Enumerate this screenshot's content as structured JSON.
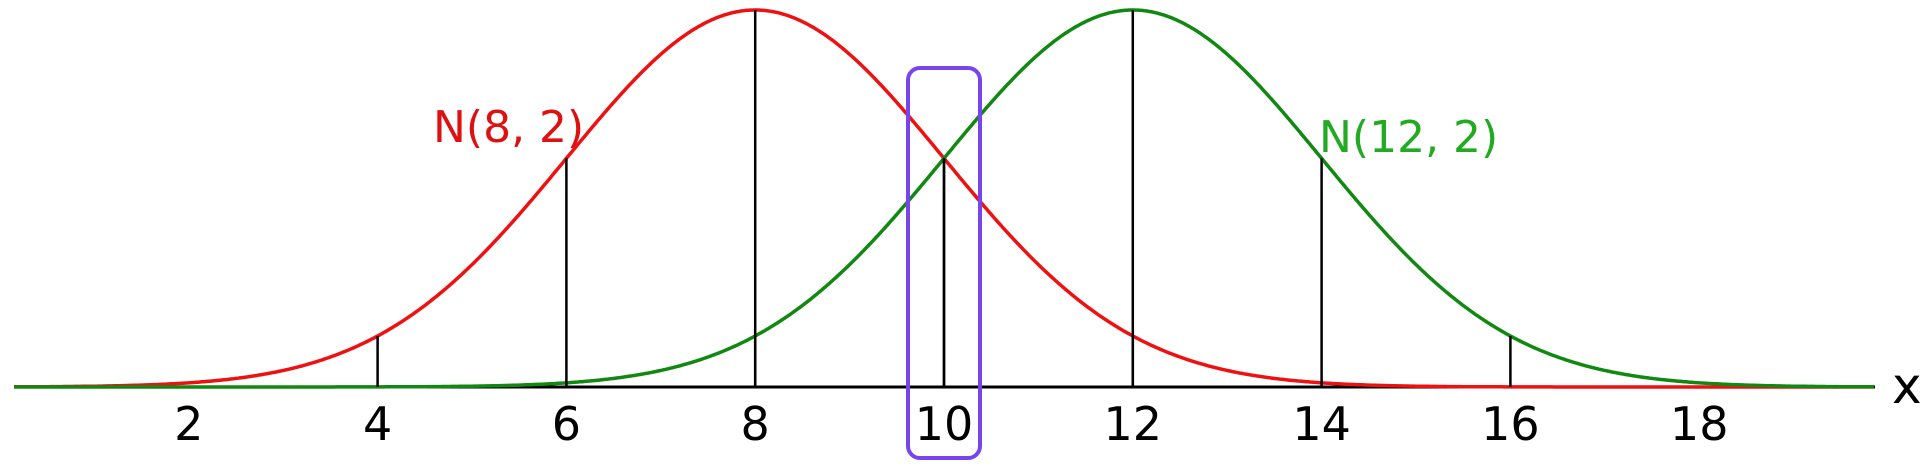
{
  "chart_data": {
    "type": "line",
    "title": "",
    "xlabel": "x",
    "ylabel": "",
    "xlim": [
      0,
      20
    ],
    "ylim": [
      0,
      0.2
    ],
    "grid": false,
    "x_ticks": [
      2,
      4,
      6,
      8,
      10,
      12,
      14,
      16,
      18
    ],
    "series": [
      {
        "name": "N(8, 2)",
        "mean": 8,
        "sd": 2,
        "color": "#ee1111",
        "label_color": "#dd1111",
        "marker_x": [
          4,
          6,
          8,
          10,
          12
        ]
      },
      {
        "name": "N(12, 2)",
        "mean": 12,
        "sd": 2,
        "color": "#118811",
        "label_color": "#22aa22",
        "marker_x": [
          8,
          10,
          12,
          14,
          16
        ]
      }
    ],
    "highlight": {
      "x": 10,
      "color": "#7744ee"
    }
  }
}
